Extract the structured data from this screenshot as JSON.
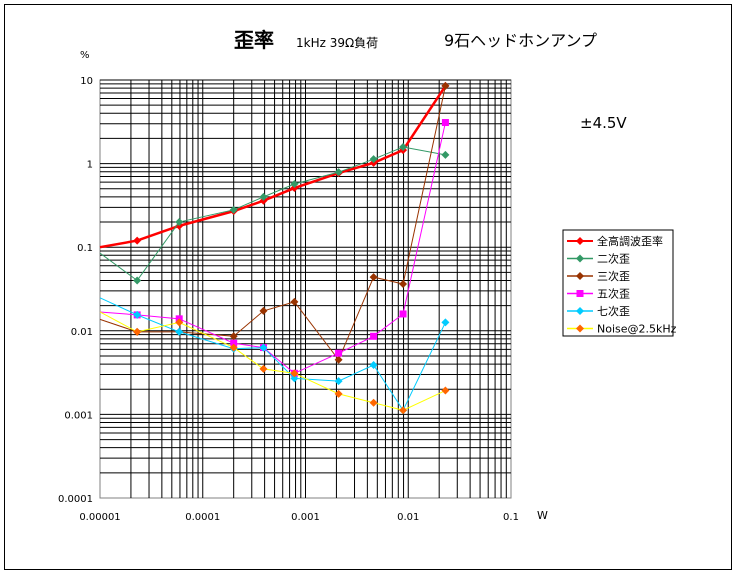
{
  "chart_data": {
    "type": "line",
    "title": "歪率",
    "subtitle": "1kHz 39Ω負荷",
    "title_right": "9石ヘッドホンアンプ",
    "annotation": "±4.5V",
    "xlabel": "W",
    "ylabel": "%",
    "xscale": "log",
    "yscale": "log",
    "xlim": [
      1e-05,
      0.1
    ],
    "ylim": [
      0.0001,
      10
    ],
    "grid": true,
    "legend_position": "right",
    "x_tick_labels": [
      "0.00001",
      "0.0001",
      "0.001",
      "0.01",
      "0.1"
    ],
    "y_tick_labels": [
      "10",
      "1",
      "0.1",
      "0.01",
      "0.001",
      "0.0001"
    ],
    "x_ticks": [
      1e-05,
      0.0001,
      0.001,
      0.01,
      0.1
    ],
    "y_ticks": [
      10,
      1,
      0.1,
      0.01,
      0.001,
      0.0001
    ],
    "x": [
      1e-05,
      2.3e-05,
      5.9e-05,
      0.0002,
      0.00039,
      0.00078,
      0.0021,
      0.0046,
      0.0089,
      0.023
    ],
    "series": [
      {
        "name": "全高調波歪率",
        "color": "#ff0000",
        "line_color": "#ff0000",
        "marker": "diamond",
        "values": [
          0.1,
          0.12,
          0.18,
          0.27,
          0.36,
          0.51,
          0.77,
          1.02,
          1.45,
          8.5
        ]
      },
      {
        "name": "二次歪",
        "color": "#339966",
        "line_color": "#339966",
        "marker": "diamond",
        "values": [
          0.085,
          0.04,
          0.2,
          0.28,
          0.4,
          0.57,
          0.79,
          1.13,
          1.58,
          1.27
        ]
      },
      {
        "name": "三次歪",
        "color": "#993300",
        "line_color": "#993300",
        "marker": "diamond",
        "values": [
          0.0137,
          0.0097,
          0.0097,
          0.0086,
          0.0173,
          0.0222,
          0.0045,
          0.0439,
          0.0363,
          8.5
        ]
      },
      {
        "name": "五次歪",
        "color": "#ff00ff",
        "line_color": "#ff00ff",
        "marker": "square",
        "values": [
          0.0168,
          0.0155,
          0.0139,
          0.0071,
          0.0063,
          0.0031,
          0.0054,
          0.0086,
          0.0159,
          3.1
        ]
      },
      {
        "name": "七次歪",
        "color": "#00ccff",
        "line_color": "#00ccff",
        "marker": "diamond",
        "values": [
          0.0248,
          0.0155,
          0.0097,
          0.0061,
          0.0063,
          0.0027,
          0.0025,
          0.0039,
          0.00112,
          0.0126
        ]
      },
      {
        "name": "Noise@2.5kHz",
        "color": "#ff6600",
        "line_color": "#ffff00",
        "marker": "diamond",
        "values": [
          0.0168,
          0.0097,
          0.0126,
          0.0063,
          0.0035,
          0.0031,
          0.00176,
          0.00138,
          0.00112,
          0.00193
        ]
      }
    ]
  }
}
